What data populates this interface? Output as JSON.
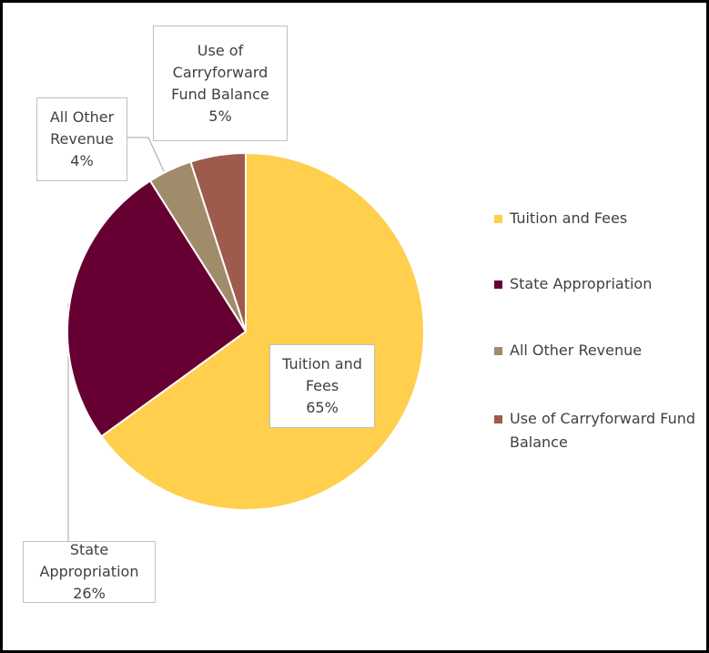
{
  "chart_data": {
    "type": "pie",
    "categories": [
      "Tuition and Fees",
      "State Appropriation",
      "All Other Revenue",
      "Use of Carryforward Fund Balance"
    ],
    "values": [
      65,
      26,
      4,
      5
    ],
    "value_labels": [
      "65%",
      "26%",
      "4%",
      "5%"
    ],
    "colors": [
      "#ffcf4d",
      "#660033",
      "#a08c6a",
      "#9e5b4b"
    ],
    "legend": "right"
  }
}
